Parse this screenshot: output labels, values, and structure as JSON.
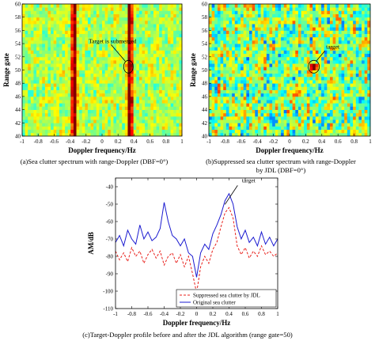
{
  "chart_data": [
    {
      "type": "heatmap",
      "caption": "(a)Sea clutter spectrum with range-Doppler (DBF=0°)",
      "xlabel": "Doppler frequency/Hz",
      "ylabel": "Range gate",
      "xlim": [
        -1,
        1
      ],
      "ylim": [
        40,
        60
      ],
      "x_ticks": [
        "-1",
        "-0.8",
        "-0.6",
        "-0.4",
        "-0.2",
        "0",
        "0.2",
        "0.4",
        "0.6",
        "0.8",
        "1"
      ],
      "y_ticks": [
        "40",
        "42",
        "44",
        "46",
        "48",
        "50",
        "52",
        "54",
        "56",
        "58",
        "60"
      ],
      "clutter_bands_doppler_hz": [
        -0.35,
        0.35
      ],
      "annotation": {
        "text": "Target is submerged",
        "doppler_hz": 0.33,
        "range_gate": 50.5
      }
    },
    {
      "type": "heatmap",
      "caption_lines": [
        "(b)Suppressed sea clutter spectrum with range-Doppler",
        "by JDL (DBF=0°)"
      ],
      "xlabel": "Doppler frequency/Hz",
      "ylabel": "Range gate",
      "xlim": [
        -1,
        1
      ],
      "ylim": [
        40,
        60
      ],
      "x_ticks": [
        "-1",
        "-0.8",
        "-0.6",
        "-0.4",
        "-0.2",
        "0",
        "0.2",
        "0.4",
        "0.6",
        "0.8",
        "1"
      ],
      "y_ticks": [
        "40",
        "42",
        "44",
        "46",
        "48",
        "50",
        "52",
        "54",
        "56",
        "58",
        "60"
      ],
      "annotation": {
        "text": "target",
        "doppler_hz": 0.3,
        "range_gate": 50.5
      }
    },
    {
      "type": "line",
      "caption": "(c)Target-Doppler profile before and after the JDL algorithm (range gate=50)",
      "xlabel": "Doppler frequency/Hz",
      "ylabel": "AM/dB",
      "xlim": [
        -1,
        1
      ],
      "ylim": [
        -110,
        -35
      ],
      "x_ticks": [
        "-1",
        "-0.8",
        "-0.6",
        "-0.4",
        "-0.2",
        "0",
        "0.2",
        "0.4",
        "0.6",
        "0.8",
        "1"
      ],
      "y_ticks": [
        "-110",
        "-100",
        "-90",
        "-80",
        "-70",
        "-60",
        "-50",
        "-40"
      ],
      "annotation": {
        "text": "target",
        "x": 0.33,
        "y": -52
      },
      "legend_position": "bottom-right",
      "x": [
        -1.0,
        -0.95,
        -0.9,
        -0.85,
        -0.8,
        -0.75,
        -0.7,
        -0.65,
        -0.6,
        -0.55,
        -0.5,
        -0.45,
        -0.4,
        -0.35,
        -0.3,
        -0.25,
        -0.2,
        -0.15,
        -0.1,
        -0.05,
        0.0,
        0.05,
        0.1,
        0.15,
        0.2,
        0.25,
        0.3,
        0.35,
        0.4,
        0.45,
        0.5,
        0.55,
        0.6,
        0.65,
        0.7,
        0.75,
        0.8,
        0.85,
        0.9,
        0.95,
        1.0
      ],
      "series": [
        {
          "name": "Suppressed sea clutter by JDL",
          "color": "#e8201b",
          "dash": true,
          "values": [
            -77,
            -82,
            -78,
            -83,
            -75,
            -80,
            -77,
            -84,
            -79,
            -76,
            -81,
            -77,
            -85,
            -80,
            -78,
            -84,
            -79,
            -86,
            -80,
            -90,
            -101,
            -86,
            -80,
            -84,
            -76,
            -72,
            -63,
            -55,
            -52,
            -58,
            -74,
            -79,
            -75,
            -81,
            -77,
            -80,
            -74,
            -79,
            -77,
            -80,
            -78
          ]
        },
        {
          "name": "Original sea clutter",
          "color": "#1a1ad0",
          "dash": false,
          "values": [
            -72,
            -68,
            -74,
            -65,
            -70,
            -73,
            -62,
            -70,
            -66,
            -71,
            -69,
            -64,
            -49,
            -60,
            -68,
            -70,
            -74,
            -70,
            -78,
            -80,
            -92,
            -78,
            -73,
            -76,
            -67,
            -62,
            -56,
            -48,
            -44,
            -50,
            -63,
            -70,
            -65,
            -72,
            -69,
            -74,
            -66,
            -73,
            -69,
            -74,
            -70
          ]
        }
      ]
    }
  ]
}
